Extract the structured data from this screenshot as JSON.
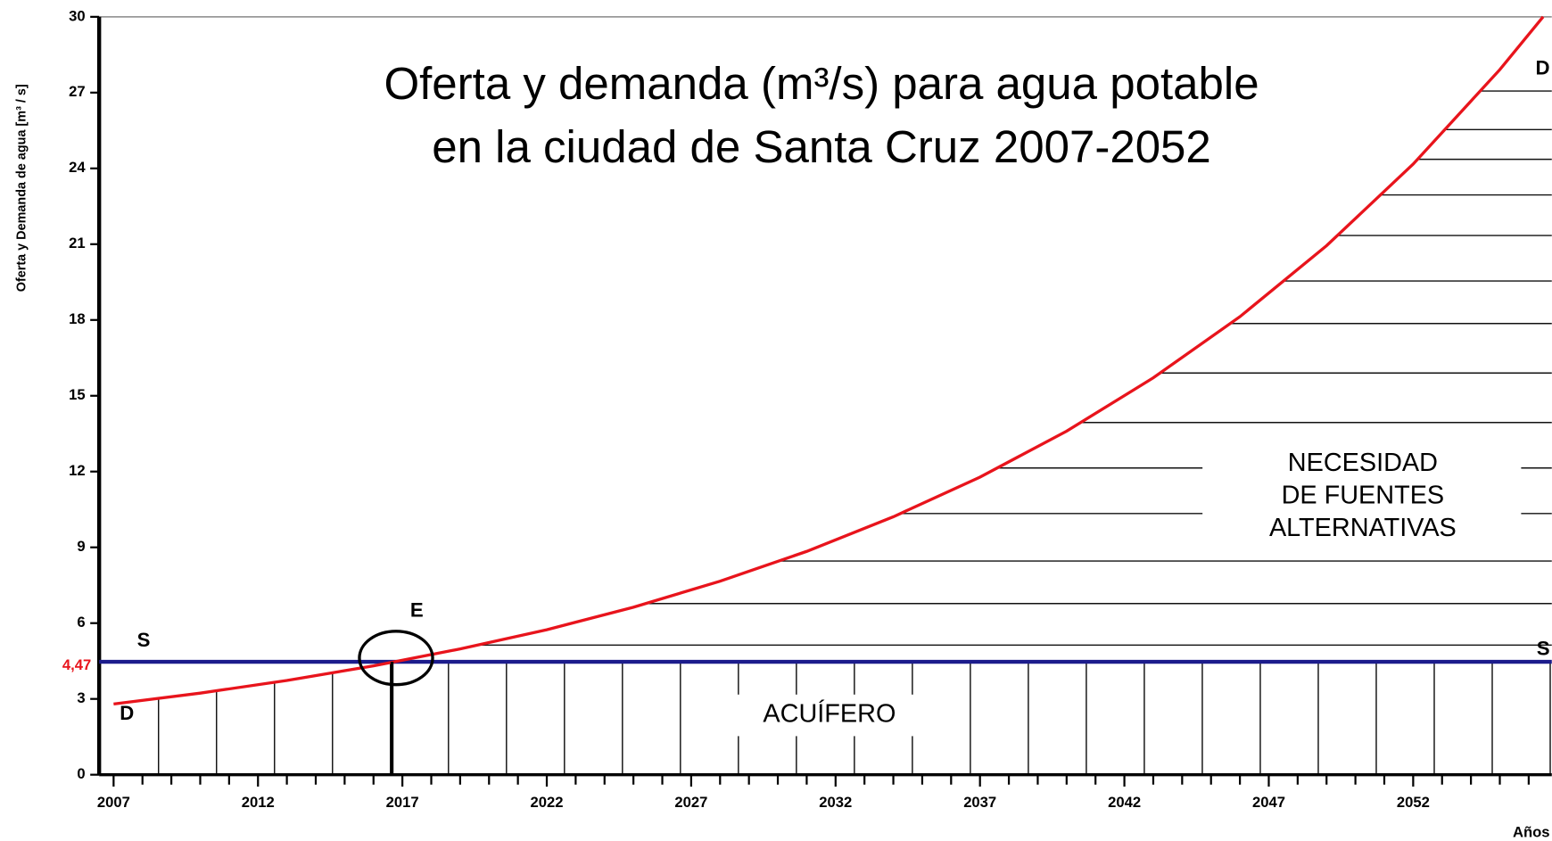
{
  "chart_data": {
    "type": "line",
    "title": [
      "Oferta y demanda (m³/s) para agua potable",
      "en la ciudad de Santa Cruz 2007-2052"
    ],
    "ylabel": "Oferta y Demanda de agua [m³ / s]",
    "xlabel": "Años",
    "x": [
      2007,
      2010,
      2013,
      2016,
      2019,
      2022,
      2025,
      2028,
      2031,
      2034,
      2037,
      2040,
      2043,
      2046,
      2049,
      2052,
      2055,
      2056.5
    ],
    "series": [
      {
        "name": "D",
        "color": "#e8141c",
        "values": [
          2.8,
          3.23,
          3.73,
          4.31,
          4.98,
          5.74,
          6.63,
          7.66,
          8.84,
          10.21,
          11.78,
          13.6,
          15.71,
          18.13,
          20.94,
          24.17,
          27.91,
          30
        ]
      }
    ],
    "supply": {
      "name": "S",
      "value": 4.47,
      "label": "4,47",
      "color": "#1c1c8c"
    },
    "xlim": [
      2006.5,
      2056.8
    ],
    "ylim": [
      0,
      30
    ],
    "xticks": [
      2007,
      2012,
      2017,
      2022,
      2027,
      2032,
      2037,
      2042,
      2047,
      2052
    ],
    "xminorticks": [
      2008,
      2009,
      2010,
      2011,
      2013,
      2014,
      2015,
      2016,
      2018,
      2019,
      2020,
      2021,
      2023,
      2024,
      2025,
      2026,
      2028,
      2029,
      2030,
      2031,
      2033,
      2034,
      2035,
      2036,
      2038,
      2039,
      2040,
      2041,
      2043,
      2044,
      2045,
      2046,
      2048,
      2049,
      2050,
      2051,
      2053,
      2054,
      2055,
      2056
    ],
    "yticks": [
      0,
      3,
      6,
      9,
      12,
      15,
      18,
      21,
      24,
      27,
      30
    ],
    "annotations": {
      "equilibrium": "E",
      "demand_start": "D",
      "demand_end": "D",
      "supply_start": "S",
      "supply_end": "S",
      "aquifer": "ACUÍFERO",
      "need": [
        "NECESIDAD",
        "DE FUENTES",
        "ALTERNATIVAS"
      ]
    }
  }
}
